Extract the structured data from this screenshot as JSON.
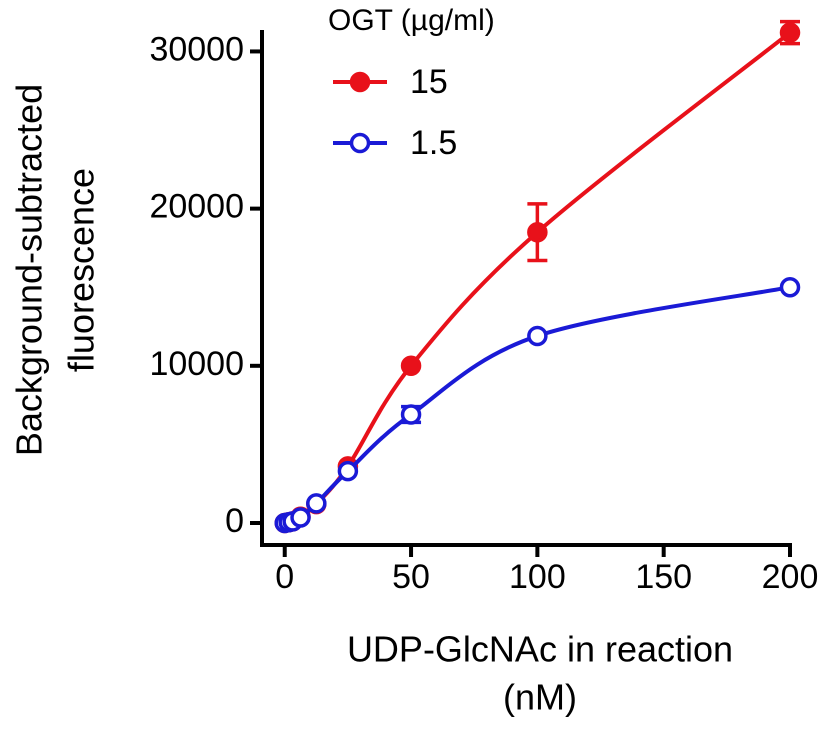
{
  "chart_data": {
    "type": "line",
    "x_label": [
      "UDP-GlcNAc in reaction",
      "(nM)"
    ],
    "y_label": [
      "Background-subtracted",
      "fluorescence"
    ],
    "legend_title": "OGT (µg/ml)",
    "legend": "top-left",
    "x": [
      0,
      1.5625,
      3.125,
      6.25,
      12.5,
      25,
      50,
      100,
      200
    ],
    "series": [
      {
        "name": "15",
        "color": "#e8111a",
        "marker": "filled",
        "values": [
          0,
          50,
          100,
          400,
          1200,
          3600,
          10000,
          18500,
          31200
        ],
        "errors": [
          null,
          null,
          null,
          null,
          null,
          null,
          null,
          1800,
          700
        ]
      },
      {
        "name": "1.5",
        "color": "#1a1ad6",
        "marker": "open",
        "values": [
          0,
          50,
          100,
          350,
          1250,
          3300,
          6900,
          11900,
          15000
        ],
        "errors": [
          null,
          null,
          null,
          null,
          null,
          null,
          500,
          null,
          null
        ]
      }
    ],
    "xlim": [
      -9,
      200
    ],
    "xticks": [
      0,
      50,
      100,
      150,
      200
    ],
    "ylim": [
      -1400,
      32000
    ],
    "yticks": [
      0,
      10000,
      20000,
      30000
    ]
  }
}
